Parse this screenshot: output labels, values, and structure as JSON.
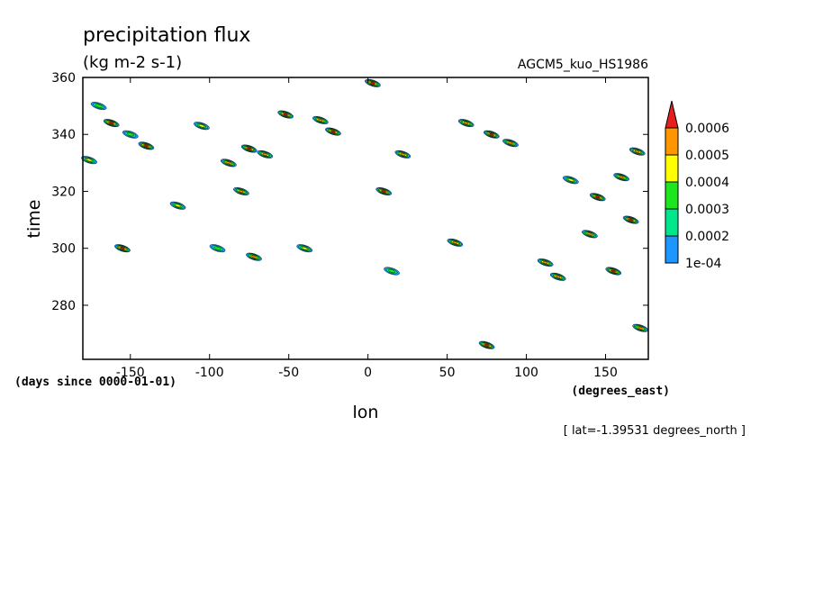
{
  "chart_data": {
    "type": "heatmap",
    "title": "precipitation flux",
    "units": "(kg m-2 s-1)",
    "source": "AGCM5_kuo_HS1986",
    "xlabel": "lon",
    "xunits": "(degrees_east)",
    "ylabel": "time",
    "yunits": "(days since 0000-01-01)",
    "slice": "[ lat=-1.39531 degrees_north ]",
    "xlim": [
      -180,
      177
    ],
    "ylim": [
      261,
      360
    ],
    "xticks": [
      -150,
      -100,
      -50,
      0,
      50,
      100,
      150
    ],
    "yticks": [
      280,
      300,
      320,
      340,
      360
    ],
    "colorbar": {
      "labels": [
        "1e-04",
        "0.0002",
        "0.0003",
        "0.0004",
        "0.0005",
        "0.0006"
      ],
      "levels": [
        0.0001,
        0.0002,
        0.0003,
        0.0004,
        0.0005,
        0.0006
      ],
      "colors": [
        "#1e96ff",
        "#00e68c",
        "#1ee61e",
        "#ffff00",
        "#ff9600",
        "#e61e1e"
      ],
      "extend": "max"
    },
    "cells": [
      {
        "lon": -176,
        "time": 331,
        "v": 0.0004
      },
      {
        "lon": -170,
        "time": 350,
        "v": 0.0003
      },
      {
        "lon": -162,
        "time": 344,
        "v": 0.0006
      },
      {
        "lon": -155,
        "time": 300,
        "v": 0.0006
      },
      {
        "lon": -150,
        "time": 340,
        "v": 0.0003
      },
      {
        "lon": -140,
        "time": 336,
        "v": 0.0006
      },
      {
        "lon": -120,
        "time": 315,
        "v": 0.0004
      },
      {
        "lon": -105,
        "time": 343,
        "v": 0.0004
      },
      {
        "lon": -95,
        "time": 300,
        "v": 0.0003
      },
      {
        "lon": -88,
        "time": 330,
        "v": 0.0005
      },
      {
        "lon": -80,
        "time": 320,
        "v": 0.0005
      },
      {
        "lon": -75,
        "time": 335,
        "v": 0.0006
      },
      {
        "lon": -72,
        "time": 297,
        "v": 0.0005
      },
      {
        "lon": -65,
        "time": 333,
        "v": 0.0005
      },
      {
        "lon": -52,
        "time": 347,
        "v": 0.0006
      },
      {
        "lon": -40,
        "time": 300,
        "v": 0.0004
      },
      {
        "lon": -30,
        "time": 345,
        "v": 0.0005
      },
      {
        "lon": -22,
        "time": 341,
        "v": 0.0006
      },
      {
        "lon": 3,
        "time": 358,
        "v": 0.0006
      },
      {
        "lon": 10,
        "time": 320,
        "v": 0.0006
      },
      {
        "lon": 15,
        "time": 292,
        "v": 0.0003
      },
      {
        "lon": 22,
        "time": 333,
        "v": 0.0005
      },
      {
        "lon": 55,
        "time": 302,
        "v": 0.0005
      },
      {
        "lon": 62,
        "time": 344,
        "v": 0.0005
      },
      {
        "lon": 75,
        "time": 266,
        "v": 0.0006
      },
      {
        "lon": 78,
        "time": 340,
        "v": 0.0006
      },
      {
        "lon": 90,
        "time": 337,
        "v": 0.0005
      },
      {
        "lon": 112,
        "time": 295,
        "v": 0.0005
      },
      {
        "lon": 120,
        "time": 290,
        "v": 0.0005
      },
      {
        "lon": 128,
        "time": 324,
        "v": 0.0004
      },
      {
        "lon": 140,
        "time": 305,
        "v": 0.0005
      },
      {
        "lon": 145,
        "time": 318,
        "v": 0.0006
      },
      {
        "lon": 155,
        "time": 292,
        "v": 0.0006
      },
      {
        "lon": 160,
        "time": 325,
        "v": 0.0005
      },
      {
        "lon": 166,
        "time": 310,
        "v": 0.0006
      },
      {
        "lon": 170,
        "time": 334,
        "v": 0.0005
      },
      {
        "lon": 172,
        "time": 272,
        "v": 0.0005
      }
    ]
  }
}
